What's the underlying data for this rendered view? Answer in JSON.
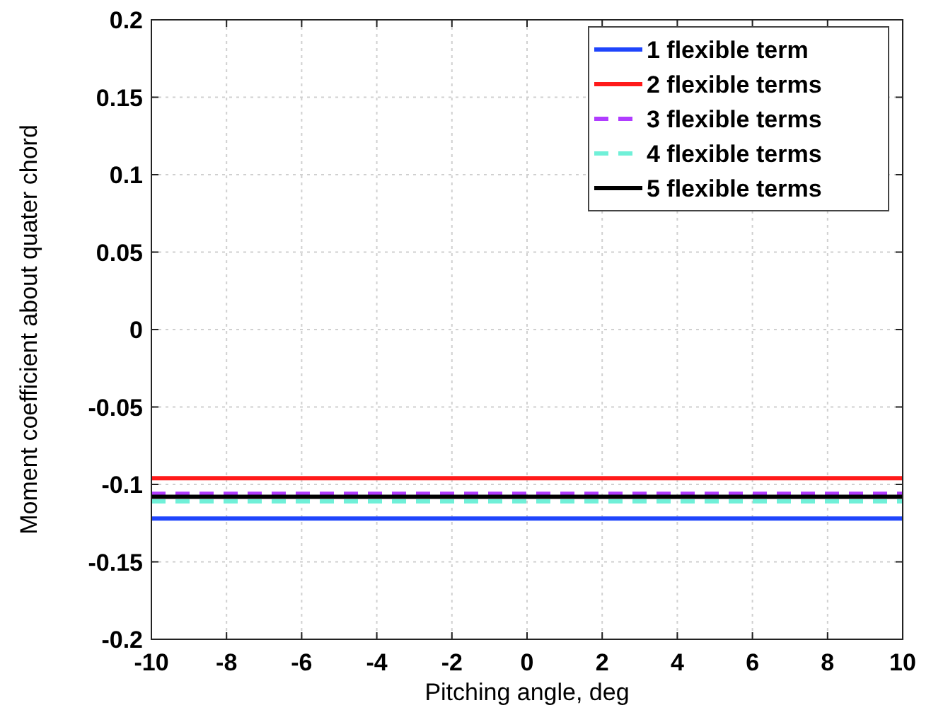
{
  "chart_data": {
    "type": "line",
    "xlabel": "Pitching angle, deg",
    "ylabel": "Moment coefficient about quater chord",
    "x": [
      -10,
      10
    ],
    "series": [
      {
        "name": "1 flexible term",
        "color": "#1f45fc",
        "values": [
          -0.122,
          -0.122
        ],
        "line_style": "solid"
      },
      {
        "name": "2 flexible terms",
        "color": "#ff1a1a",
        "values": [
          -0.096,
          -0.096
        ],
        "line_style": "solid"
      },
      {
        "name": "3 flexible terms",
        "color": "#b03cff",
        "values": [
          -0.106,
          -0.106
        ],
        "line_style": "dashed"
      },
      {
        "name": "4 flexible terms",
        "color": "#70f0d8",
        "values": [
          -0.111,
          -0.111
        ],
        "line_style": "dashed"
      },
      {
        "name": "5 flexible terms",
        "color": "#000000",
        "values": [
          -0.108,
          -0.108
        ],
        "line_style": "solid"
      }
    ],
    "xlim": [
      -10,
      10
    ],
    "xticks": [
      -10,
      -8,
      -6,
      -4,
      -2,
      0,
      2,
      4,
      6,
      8,
      10
    ],
    "ylim": [
      -0.2,
      0.2
    ],
    "yticks": [
      -0.2,
      -0.15,
      -0.1,
      -0.05,
      0,
      0.05,
      0.1,
      0.15,
      0.2
    ],
    "grid": true,
    "legend": "top right",
    "marker": "none"
  }
}
